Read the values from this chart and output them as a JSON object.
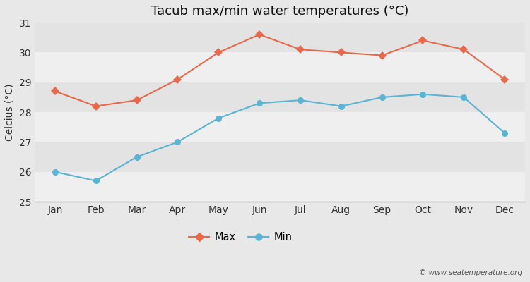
{
  "title": "Tacub max/min water temperatures (°C)",
  "xlabel": "",
  "ylabel": "Celcius (°C)",
  "months": [
    "Jan",
    "Feb",
    "Mar",
    "Apr",
    "May",
    "Jun",
    "Jul",
    "Aug",
    "Sep",
    "Oct",
    "Nov",
    "Dec"
  ],
  "max_values": [
    28.7,
    28.2,
    28.4,
    29.1,
    30.0,
    30.6,
    30.1,
    30.0,
    29.9,
    30.4,
    30.1,
    29.1
  ],
  "min_values": [
    26.0,
    25.7,
    26.5,
    27.0,
    27.8,
    28.3,
    28.4,
    28.2,
    28.5,
    28.6,
    28.5,
    27.3
  ],
  "max_color": "#e8694a",
  "min_color": "#5ab4d6",
  "bg_color": "#e8e8e8",
  "plot_bg_light": "#efefef",
  "plot_bg_dark": "#e3e3e3",
  "ylim": [
    25,
    31
  ],
  "yticks": [
    25,
    26,
    27,
    28,
    29,
    30,
    31
  ],
  "watermark": "© www.seatemperature.org",
  "legend_max": "Max",
  "legend_min": "Min",
  "title_fontsize": 13,
  "axis_fontsize": 10,
  "ylabel_fontsize": 10
}
